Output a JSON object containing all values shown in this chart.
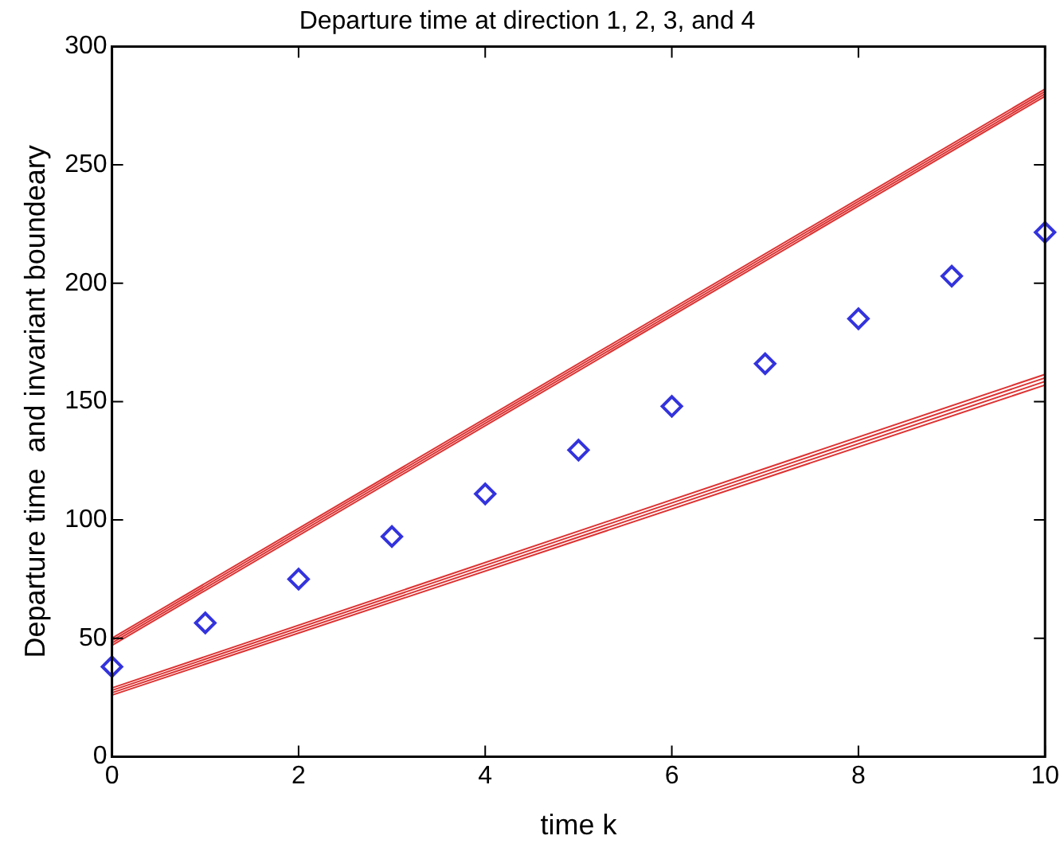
{
  "chart_data": {
    "type": "scatter",
    "title": "Departure time at direction 1, 2, 3, and 4",
    "xlabel": "time k",
    "ylabel": "Departure time  and invariant boundeary",
    "xlim": [
      0,
      10
    ],
    "xticks": [
      0,
      2,
      4,
      6,
      8,
      10
    ],
    "ylim": [
      0,
      300
    ],
    "yticks": [
      0,
      50,
      100,
      150,
      200,
      250,
      300
    ],
    "grid": false,
    "legend": false,
    "series": [
      {
        "type": "line",
        "color": "#dd3333",
        "x": [
          0,
          10
        ],
        "values": [
          47,
          279
        ],
        "marker": "none"
      },
      {
        "type": "line",
        "color": "#dd3333",
        "x": [
          0,
          10
        ],
        "values": [
          48,
          280
        ],
        "marker": "none"
      },
      {
        "type": "line",
        "color": "#dd3333",
        "x": [
          0,
          10
        ],
        "values": [
          49,
          281
        ],
        "marker": "none"
      },
      {
        "type": "line",
        "color": "#dd3333",
        "x": [
          0,
          10
        ],
        "values": [
          50,
          282
        ],
        "marker": "none"
      },
      {
        "type": "line",
        "color": "#dd3333",
        "x": [
          0,
          10
        ],
        "values": [
          26,
          157
        ],
        "marker": "none"
      },
      {
        "type": "line",
        "color": "#dd3333",
        "x": [
          0,
          10
        ],
        "values": [
          27,
          158.5
        ],
        "marker": "none"
      },
      {
        "type": "line",
        "color": "#dd3333",
        "x": [
          0,
          10
        ],
        "values": [
          28,
          160
        ],
        "marker": "none"
      },
      {
        "type": "line",
        "color": "#dd3333",
        "x": [
          0,
          10
        ],
        "values": [
          29,
          161.5
        ],
        "marker": "none"
      },
      {
        "type": "scatter",
        "color": "#3333dd",
        "marker": "diamond",
        "x": [
          0,
          1,
          2,
          3,
          4,
          5,
          6,
          7,
          8,
          9,
          10
        ],
        "values": [
          38,
          56.5,
          75,
          93,
          111,
          129.5,
          148,
          166,
          185,
          203,
          221.5
        ]
      }
    ]
  }
}
